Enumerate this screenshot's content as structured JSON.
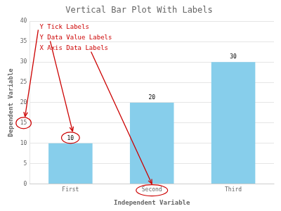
{
  "chart_data": {
    "type": "bar",
    "title": "Vertical Bar Plot With Labels",
    "xlabel": "Independent Variable",
    "ylabel": "Dependent Variable",
    "categories": [
      "First",
      "Second",
      "Third"
    ],
    "values": [
      10,
      20,
      30
    ],
    "color": "#87CEEB",
    "ylim": [
      0,
      40
    ],
    "yticks": [
      0,
      5,
      10,
      15,
      20,
      25,
      30,
      35,
      40
    ],
    "grid": true,
    "data_labels": true,
    "annotations": [
      {
        "text": "Y Tick Labels",
        "color": "#cc0000"
      },
      {
        "text": "Y Data Value Labels",
        "color": "#cc0000"
      },
      {
        "text": "X Axis Data Labels",
        "color": "#cc0000"
      }
    ]
  }
}
